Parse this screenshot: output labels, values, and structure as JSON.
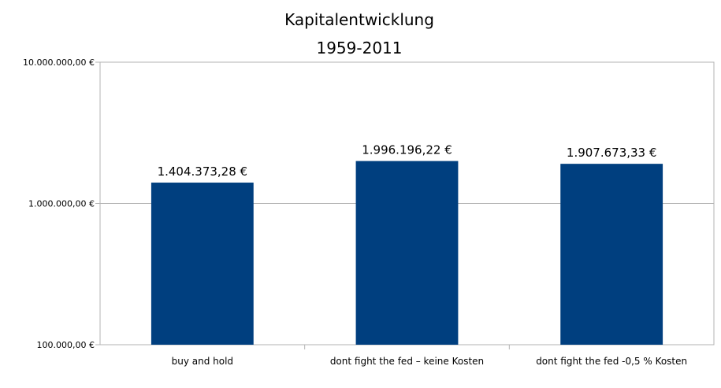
{
  "chart_data": {
    "type": "bar",
    "title": "Kapitalentwicklung",
    "subtitle": "1959-2011",
    "xlabel": "",
    "ylabel": "",
    "y_scale": "log",
    "ylim": [
      100000,
      10000000
    ],
    "y_ticks": [
      100000,
      1000000,
      10000000
    ],
    "y_tick_labels": [
      "100.000,00 €",
      "1.000.000,00 €",
      "10.000.000,00 €"
    ],
    "grid": true,
    "bar_color": "#003f7f",
    "categories": [
      "buy and hold",
      "dont fight the fed – keine Kosten",
      "dont fight the fed -0,5 % Kosten"
    ],
    "values": [
      1404373.28,
      1996196.22,
      1907673.33
    ],
    "data_labels": [
      "1.404.373,28 €",
      "1.996.196,22 €",
      "1.907.673,33 €"
    ]
  }
}
